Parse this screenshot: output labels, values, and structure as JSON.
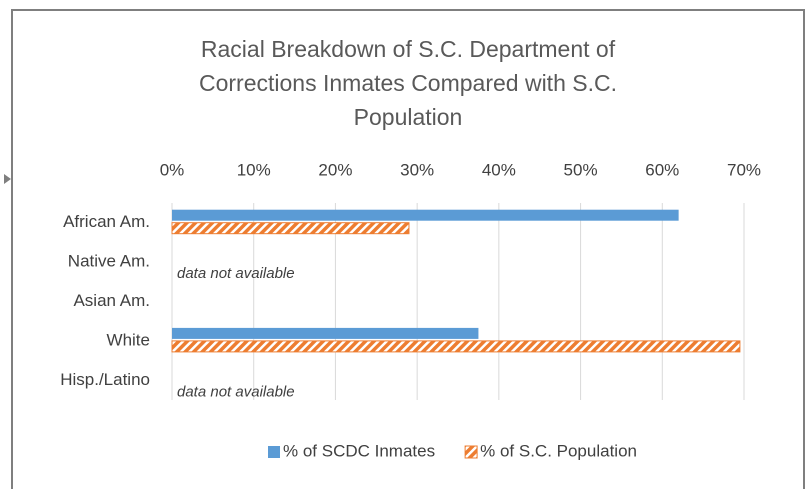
{
  "chart_data": {
    "type": "bar",
    "orientation": "horizontal",
    "title": "Racial Breakdown of S.C. Department of Corrections Inmates Compared with S.C. Population",
    "categories": [
      "African Am.",
      "Native Am.",
      "Asian Am.",
      "White",
      "Hisp./Latino"
    ],
    "series": [
      {
        "name": "% of SCDC Inmates",
        "color": "#5b9bd5",
        "values": [
          62,
          null,
          null,
          37.5,
          null
        ]
      },
      {
        "name": "% of S.C. Population",
        "color": "#ed7d31",
        "pattern": "hatch",
        "values": [
          29,
          null,
          null,
          69.5,
          null
        ]
      }
    ],
    "xlim": [
      0,
      70
    ],
    "xticks": [
      {
        "value": 0,
        "label": "0%"
      },
      {
        "value": 10,
        "label": "10%"
      },
      {
        "value": 20,
        "label": "20%"
      },
      {
        "value": 30,
        "label": "30%"
      },
      {
        "value": 40,
        "label": "40%"
      },
      {
        "value": 50,
        "label": "50%"
      },
      {
        "value": 60,
        "label": "60%"
      },
      {
        "value": 70,
        "label": "70%"
      }
    ],
    "grid": true,
    "legend": "bottom",
    "annotations": [
      {
        "text": "data not available",
        "category": 1
      },
      {
        "text": "data not available",
        "category": 4
      }
    ]
  }
}
